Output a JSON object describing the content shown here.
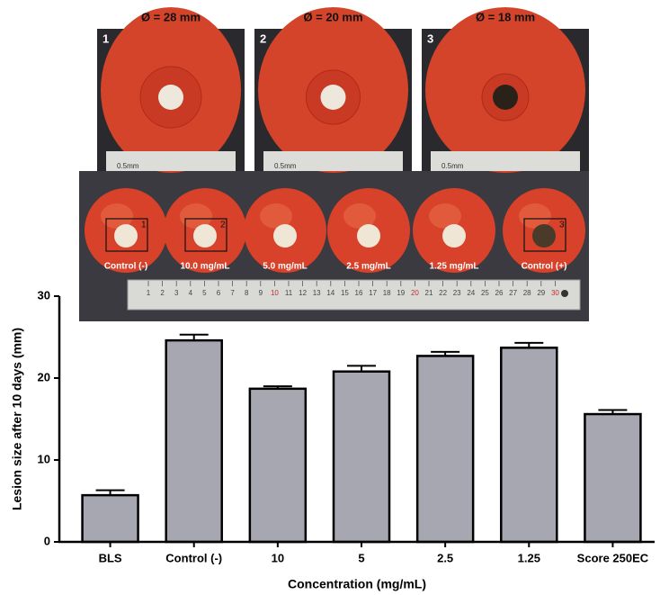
{
  "chart_data": {
    "type": "bar",
    "xlabel": "Concentration (mg/mL)",
    "ylabel": "Lesion size after 10 days (mm)",
    "categories": [
      "BLS",
      "Control (-)",
      "10",
      "5",
      "2.5",
      "1.25",
      "Score 250EC"
    ],
    "values": [
      5.7,
      24.6,
      18.7,
      20.8,
      22.7,
      23.7,
      15.6
    ],
    "errors": [
      0.6,
      0.7,
      0.3,
      0.7,
      0.5,
      0.6,
      0.5
    ],
    "color": "#a7a7b1",
    "ylim": [
      0,
      30
    ],
    "yticks": [
      0,
      10,
      20,
      30
    ]
  },
  "photos": {
    "insets": [
      {
        "number": "1",
        "diameter": "Ø = 28 mm",
        "scale": "0.5mm"
      },
      {
        "number": "2",
        "diameter": "Ø = 20 mm",
        "scale": "0.5mm"
      },
      {
        "number": "3",
        "diameter": "Ø = 18 mm",
        "scale": "0.5mm"
      }
    ],
    "tomatoes": [
      {
        "label": "Control (-)",
        "box": "1"
      },
      {
        "label": "10.0 mg/mL",
        "box": "2"
      },
      {
        "label": "5.0 mg/mL"
      },
      {
        "label": "2.5 mg/mL"
      },
      {
        "label": "1.25 mg/mL"
      },
      {
        "label": "Control (+)",
        "box": "3"
      }
    ],
    "ruler": [
      "1",
      "2",
      "3",
      "4",
      "5",
      "6",
      "7",
      "8",
      "9",
      "10",
      "11",
      "12",
      "13",
      "14",
      "15",
      "16",
      "17",
      "18",
      "19",
      "20",
      "21",
      "22",
      "23",
      "24",
      "25",
      "26",
      "27",
      "28",
      "29",
      "30"
    ]
  }
}
